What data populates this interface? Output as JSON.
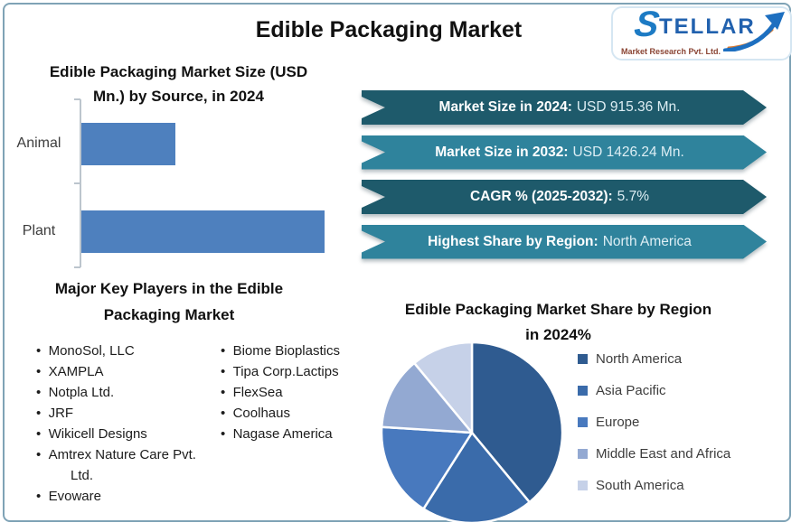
{
  "page": {
    "title": "Edible Packaging Market"
  },
  "logo": {
    "first_letter": "S",
    "rest": "TELLAR",
    "subtitle": "Market Research Pvt. Ltd.",
    "brand_color": "#2161ae",
    "arrow_blue": "#1d6fc0",
    "arrow_orange": "#d97b33"
  },
  "bar_chart": {
    "title_line1": "Edible Packaging Market Size (USD",
    "title_line2": "Mn.) by Source, in 2024",
    "bar_color": "#4E80BE"
  },
  "banners": [
    {
      "label": "Market Size in 2024:",
      "value": "USD 915.36 Mn.",
      "color": "#1E5A6B"
    },
    {
      "label": "Market Size in 2032:",
      "value": "USD 1426.24 Mn.",
      "color": "#2F839C"
    },
    {
      "label": "CAGR % (2025-2032):",
      "value": "5.7%",
      "color": "#1E5A6B"
    },
    {
      "label": "Highest Share by Region:",
      "value": "North America",
      "color": "#2F839C"
    }
  ],
  "key_players": {
    "title_line1": "Major Key Players in the Edible",
    "title_line2": "Packaging Market",
    "column1": [
      "MonoSol, LLC",
      "XAMPLA",
      "Notpla Ltd.",
      "JRF",
      "Wikicell Designs",
      "Amtrex Nature Care Pvt. Ltd.",
      "Evoware"
    ],
    "column2": [
      "Biome Bioplastics",
      "Tipa Corp.Lactips",
      "FlexSea",
      "Coolhaus",
      "Nagase America"
    ]
  },
  "pie_chart": {
    "title_line1": "Edible Packaging Market Share by Region",
    "title_line2": "in 2024%",
    "legend": [
      {
        "label": "North America",
        "color": "#2F5B90"
      },
      {
        "label": "Asia Pacific",
        "color": "#3A6BAA"
      },
      {
        "label": "Europe",
        "color": "#4879BE"
      },
      {
        "label": "Middle East and Africa",
        "color": "#93A9D2"
      },
      {
        "label": "South America",
        "color": "#C6D1E8"
      }
    ]
  },
  "chart_data": [
    {
      "type": "bar",
      "orientation": "horizontal",
      "title": "Edible Packaging Market Size (USD Mn.) by Source, in 2024",
      "categories": [
        "Animal",
        "Plant"
      ],
      "values": [
        255,
        660
      ],
      "unit": "USD Mn.",
      "value_note": "estimated from bar lengths; no value axis shown; total matches 915.36 Mn market size",
      "grid": false,
      "legend_position": "none"
    },
    {
      "type": "pie",
      "title": "Edible Packaging Market Share by Region in 2024%",
      "labels": [
        "North America",
        "Asia Pacific",
        "Europe",
        "Middle East and Africa",
        "South America"
      ],
      "values": [
        39,
        20,
        17,
        13,
        11
      ],
      "unit": "percent, estimated from slice angles",
      "start_angle_deg": 0,
      "direction": "clockwise",
      "legend_position": "right"
    }
  ]
}
